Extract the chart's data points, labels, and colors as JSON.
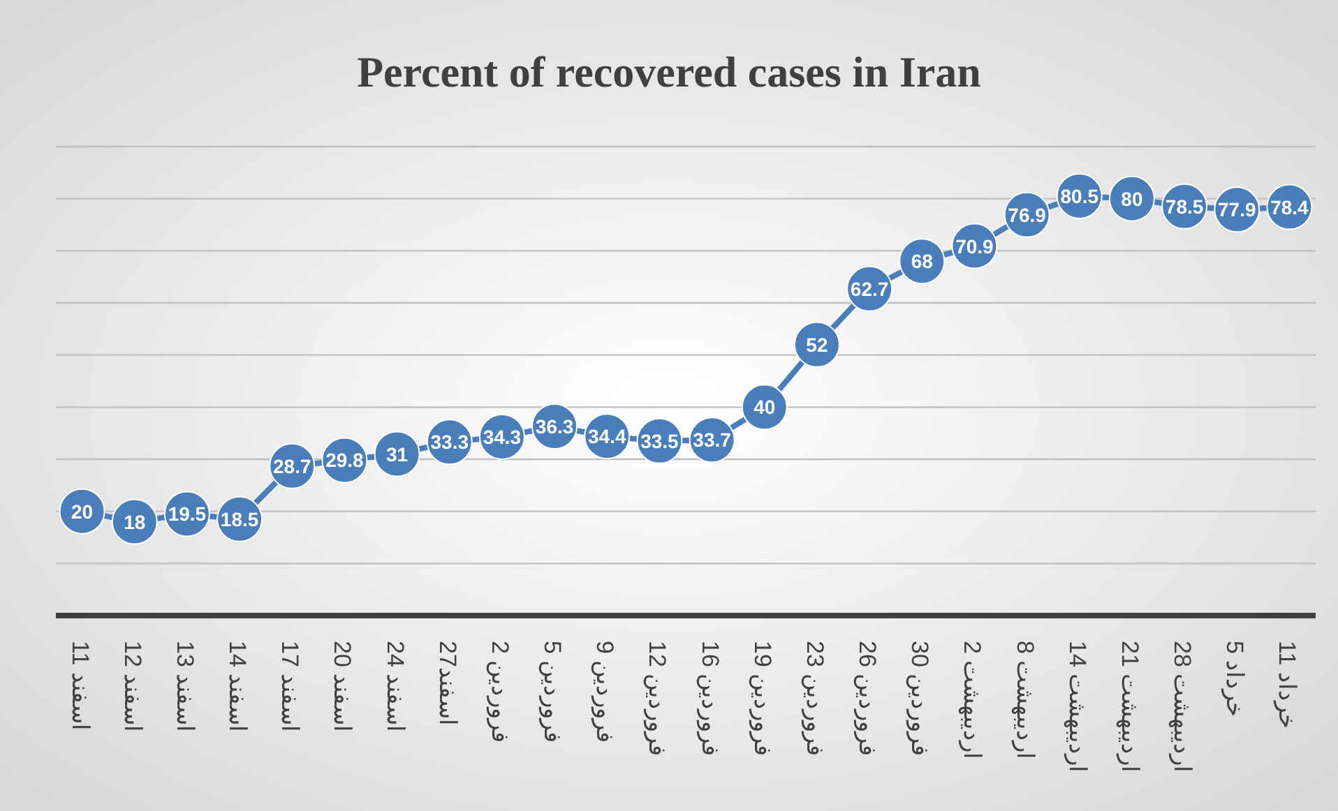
{
  "chart_data": {
    "type": "line",
    "title": "Percent of recovered cases in Iran",
    "categories": [
      "11 اسفند",
      "12 اسفند",
      "13 اسفند",
      "14 اسفند",
      "17 اسفند",
      "20 اسفند",
      "24 اسفند",
      "27اسفند",
      "2 فروردین",
      "5 فروردین",
      "9 فروردین",
      "12 فروردین",
      "16 فروردین",
      "19 فروردین",
      "23 فروردین",
      "26 فروردین",
      "30 فروردین",
      "2 اردیبهشت",
      "8 اردیبهشت",
      "14 اردیبهشت",
      "21 اردیبهشت",
      "28 اردیبهشت",
      "5 خرداد",
      "11 خرداد"
    ],
    "values": [
      20,
      18,
      19.5,
      18.5,
      28.7,
      29.8,
      31,
      33.3,
      34.3,
      36.3,
      34.4,
      33.5,
      33.7,
      40,
      52,
      62.7,
      68,
      70.9,
      76.9,
      80.5,
      80,
      78.5,
      77.9,
      78.4
    ],
    "color": "#4a7ebb",
    "ylim": [
      0,
      90
    ],
    "yticks": [
      {
        "value": 0,
        "label": null
      },
      {
        "value": 10,
        "label": null
      },
      {
        "value": 20,
        "label": null
      },
      {
        "value": 30,
        "label": null
      },
      {
        "value": 40,
        "label": null
      },
      {
        "value": 50,
        "label": null
      },
      {
        "value": 60,
        "label": null
      },
      {
        "value": 70,
        "label": null
      },
      {
        "value": 80,
        "label": null
      },
      {
        "value": 90,
        "label": null
      }
    ],
    "grid": "y",
    "tick_labels": "x",
    "data_labels": true,
    "marker": "circle",
    "line_style": "solid"
  }
}
